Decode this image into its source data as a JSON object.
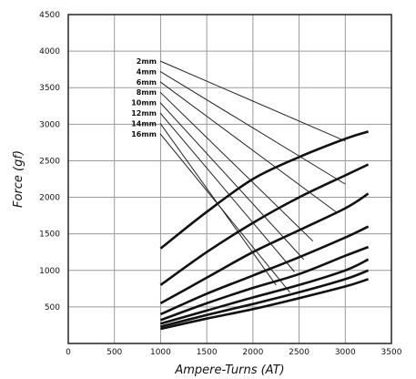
{
  "chart_data": {
    "type": "line",
    "title": "",
    "xlabel": "Ampere-Turns (AT)",
    "ylabel": "Force (gf)",
    "xlim": [
      0,
      3500
    ],
    "ylim": [
      0,
      4500
    ],
    "xticks": [
      0,
      500,
      1000,
      1500,
      2000,
      2500,
      3000,
      3500
    ],
    "xtick_labels": [
      "0",
      "500",
      "1000",
      "1500",
      "2000",
      "2500",
      "3000",
      "3500"
    ],
    "yticks": [
      500,
      1000,
      1500,
      2000,
      2500,
      3000,
      3500,
      4000,
      4500
    ],
    "ytick_labels": [
      "500",
      "1000",
      "1500",
      "2000",
      "2500",
      "3000",
      "3500",
      "4000",
      "4500"
    ],
    "grid": true,
    "x": [
      1000,
      1500,
      2000,
      2500,
      3000,
      3250
    ],
    "series": [
      {
        "name": "2mm",
        "values": [
          1300,
          1800,
          2250,
          2550,
          2800,
          2900
        ],
        "label_at": [
          3000,
          2770
        ]
      },
      {
        "name": "4mm",
        "values": [
          800,
          1250,
          1650,
          2000,
          2300,
          2450
        ],
        "label_at": [
          3000,
          2180
        ]
      },
      {
        "name": "6mm",
        "values": [
          550,
          900,
          1250,
          1550,
          1850,
          2050
        ],
        "label_at": [
          2900,
          1800
        ]
      },
      {
        "name": "8mm",
        "values": [
          400,
          680,
          930,
          1180,
          1450,
          1600
        ],
        "label_at": [
          2650,
          1400
        ]
      },
      {
        "name": "10mm",
        "values": [
          320,
          550,
          760,
          950,
          1200,
          1320
        ],
        "label_at": [
          2550,
          1150
        ]
      },
      {
        "name": "12mm",
        "values": [
          270,
          450,
          630,
          800,
          1000,
          1150
        ],
        "label_at": [
          2450,
          980
        ]
      },
      {
        "name": "14mm",
        "values": [
          230,
          390,
          540,
          700,
          880,
          1000
        ],
        "label_at": [
          2250,
          800
        ]
      },
      {
        "name": "16mm",
        "values": [
          200,
          340,
          470,
          620,
          780,
          880
        ],
        "label_at": [
          2400,
          700
        ]
      }
    ]
  }
}
